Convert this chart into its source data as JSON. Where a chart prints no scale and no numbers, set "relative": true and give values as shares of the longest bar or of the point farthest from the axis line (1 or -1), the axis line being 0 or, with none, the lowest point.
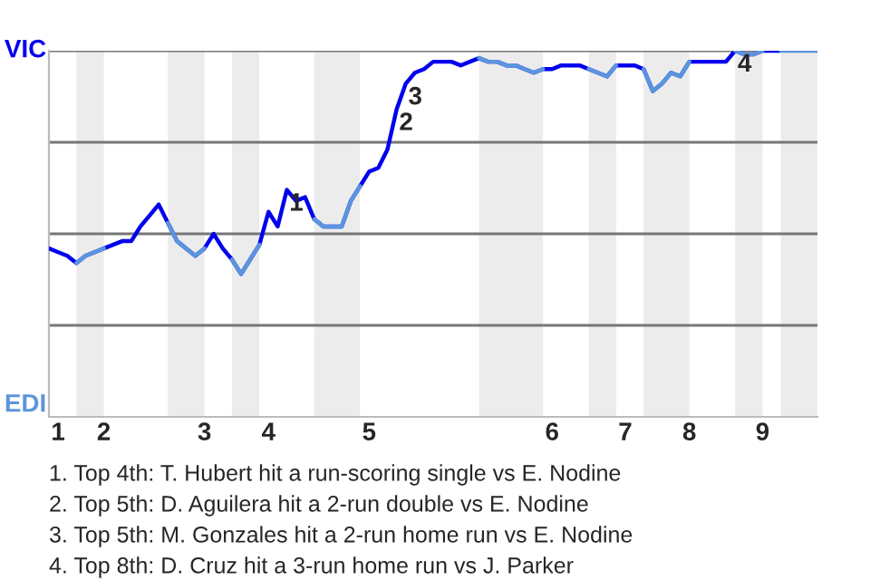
{
  "chart_data": {
    "type": "line",
    "relative": true,
    "categories": [
      null,
      "1",
      null,
      null,
      null,
      null,
      "2",
      null,
      null,
      null,
      null,
      null,
      null,
      null,
      null,
      null,
      null,
      "3",
      null,
      null,
      null,
      null,
      null,
      null,
      "4",
      null,
      null,
      null,
      null,
      null,
      null,
      null,
      null,
      null,
      null,
      "5",
      null,
      null,
      null,
      null,
      null,
      null,
      null,
      null,
      null,
      null,
      null,
      null,
      null,
      null,
      null,
      null,
      null,
      null,
      null,
      "6",
      null,
      null,
      null,
      null,
      null,
      null,
      null,
      "7",
      null,
      null,
      null,
      null,
      null,
      null,
      "8",
      null,
      null,
      null,
      null,
      null,
      null,
      null,
      "9",
      null,
      null,
      null,
      null,
      null,
      null
    ],
    "grid": "y",
    "marker": "none",
    "line_style": "solid",
    "series": [
      {
        "color": "#0000ee",
        "values": [
          0.46,
          0.45,
          0.44,
          0.42,
          0.44,
          0.45,
          0.46,
          0.47,
          0.48,
          0.48,
          0.52,
          0.55,
          0.58,
          0.53,
          0.48,
          0.46,
          0.44,
          0.46,
          0.5,
          0.46,
          0.43,
          0.39,
          0.43,
          0.47,
          0.56,
          0.52,
          0.62,
          0.59,
          0.6,
          0.54,
          0.52,
          0.52,
          0.52,
          0.59,
          0.63,
          0.67,
          0.68,
          0.73,
          0.84,
          0.91,
          0.94,
          0.95,
          0.97,
          0.97,
          0.97,
          0.96,
          0.97,
          0.98,
          0.97,
          0.97,
          0.96,
          0.96,
          0.95,
          0.94,
          0.95,
          0.95,
          0.96,
          0.96,
          0.96,
          0.95,
          0.94,
          0.93,
          0.96,
          0.96,
          0.96,
          0.95,
          0.89,
          0.91,
          0.94,
          0.93,
          0.97,
          0.97,
          0.97,
          0.97,
          0.97,
          1.0,
          0.99,
          0.99,
          1.0,
          1.0,
          1.0,
          null,
          null,
          null,
          null
        ]
      },
      {
        "color": "#5b95dd",
        "values": [
          null,
          null,
          null,
          0.42,
          0.44,
          0.45,
          0.46,
          null,
          null,
          null,
          null,
          null,
          null,
          0.53,
          0.48,
          0.46,
          0.44,
          0.46,
          null,
          null,
          0.43,
          0.39,
          0.43,
          0.47,
          null,
          null,
          null,
          null,
          null,
          0.54,
          0.52,
          0.52,
          0.52,
          0.59,
          0.63,
          null,
          null,
          null,
          null,
          null,
          null,
          null,
          null,
          null,
          null,
          null,
          null,
          0.98,
          0.97,
          0.97,
          0.96,
          0.96,
          0.95,
          0.94,
          0.95,
          null,
          null,
          null,
          null,
          0.95,
          0.94,
          0.93,
          0.96,
          null,
          null,
          0.95,
          0.89,
          0.91,
          0.94,
          0.93,
          0.97,
          null,
          null,
          null,
          null,
          1.0,
          0.99,
          0.99,
          1.0,
          null,
          1.0,
          1.0,
          1.0,
          1.0,
          1.0
        ]
      }
    ],
    "annotations": [
      "VIC",
      "EDI",
      {
        "text": "1",
        "y": 0.62
      },
      {
        "text": "2",
        "y": 0.84
      },
      {
        "text": "3",
        "y": 0.91
      },
      {
        "text": "4",
        "y": 1.0
      },
      "1. Top 4th: T. Hubert hit a run-scoring single vs E. Nodine",
      "2. Top 5th: D. Aguilera hit a 2-run double vs E. Nodine",
      "3. Top 5th: M. Gonzales hit a 2-run home run vs E. Nodine",
      "4. Top 8th: D. Cruz hit a 3-run home run vs J. Parker"
    ]
  }
}
